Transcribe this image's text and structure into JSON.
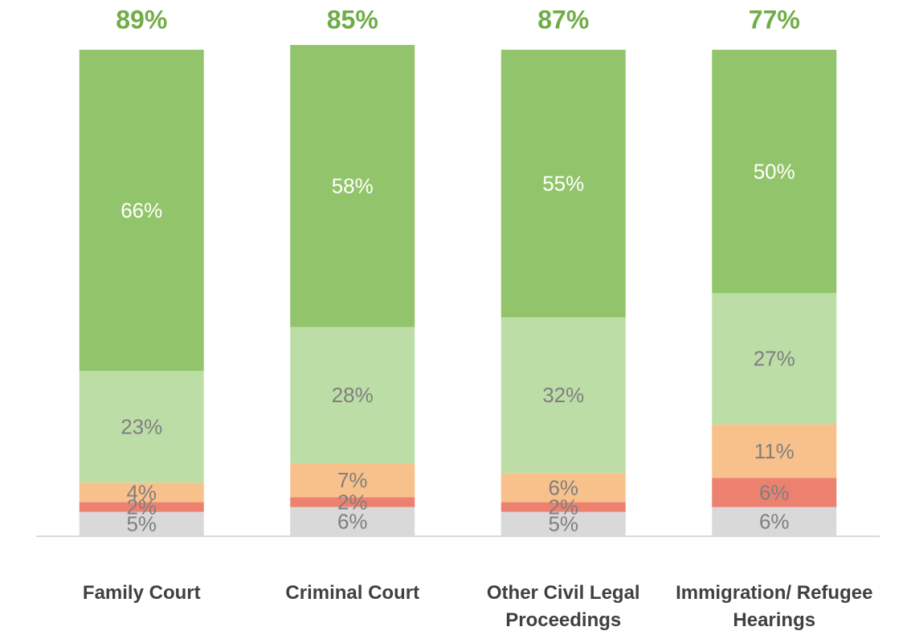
{
  "chart_data": {
    "type": "stacked_bar",
    "categories": [
      "Family Court",
      "Criminal Court",
      "Other Civil Legal Proceedings",
      "Immigration/ Refugee Hearings"
    ],
    "series": [
      {
        "color": "#d9d9d9",
        "label_color": "#7f7f7f",
        "values": [
          5,
          6,
          5,
          6
        ],
        "value_labels": [
          "5%",
          "6%",
          "5%",
          "6%"
        ]
      },
      {
        "color": "#ed8170",
        "label_color": "#7f7f7f",
        "values": [
          2,
          2,
          2,
          6
        ],
        "value_labels": [
          "2%",
          "2%",
          "2%",
          "6%"
        ]
      },
      {
        "color": "#f8c18b",
        "label_color": "#7f7f7f",
        "values": [
          4,
          7,
          6,
          11
        ],
        "value_labels": [
          "4%",
          "7%",
          "6%",
          "11%"
        ]
      },
      {
        "color": "#bddda7",
        "label_color": "#7f7f7f",
        "values": [
          23,
          28,
          32,
          27
        ],
        "value_labels": [
          "23%",
          "28%",
          "32%",
          "27%"
        ]
      },
      {
        "color": "#92c56b",
        "label_color": "#ffffff",
        "values": [
          66,
          58,
          55,
          50
        ],
        "value_labels": [
          "66%",
          "58%",
          "55%",
          "50%"
        ]
      }
    ],
    "totals": {
      "color": "#70ad47",
      "values": [
        89,
        85,
        87,
        77
      ],
      "value_labels": [
        "89%",
        "85%",
        "87%",
        "77%"
      ]
    },
    "ylim": [
      0,
      100
    ]
  }
}
